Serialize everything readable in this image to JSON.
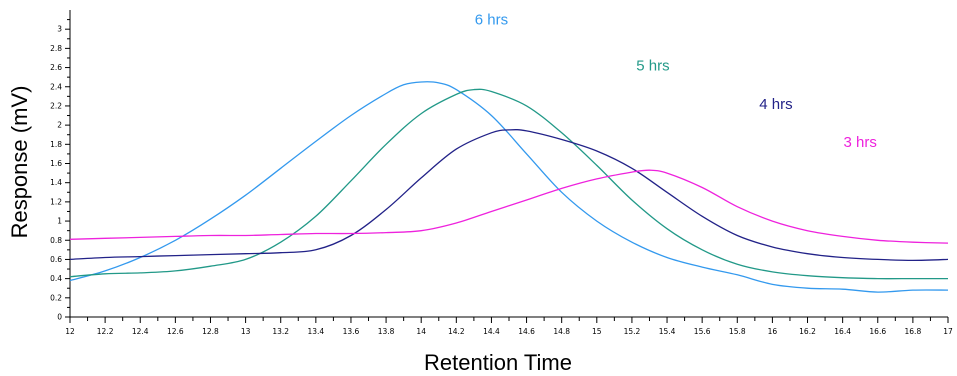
{
  "chart_data": {
    "type": "line",
    "title": "",
    "xlabel": "Retention Time",
    "ylabel": "Response (mV)",
    "xlim": [
      12,
      17
    ],
    "ylim": [
      0,
      3.2
    ],
    "x_ticks": [
      "12",
      "12.2",
      "12.4",
      "12.6",
      "12.8",
      "13",
      "13.2",
      "13.4",
      "13.6",
      "13.8",
      "14",
      "14.2",
      "14.4",
      "14.6",
      "14.8",
      "15",
      "15.2",
      "15.4",
      "15.6",
      "15.8",
      "16",
      "16.2",
      "16.4",
      "16.6",
      "16.8",
      "17"
    ],
    "y_ticks": [
      "0",
      "0.2",
      "0.4",
      "0.6",
      "0.8",
      "1",
      "1.2",
      "1.4",
      "1.6",
      "1.8",
      "2",
      "2.2",
      "2.4",
      "2.6",
      "2.8",
      "3"
    ],
    "grid": false,
    "legend": "inline labels near curves",
    "series": [
      {
        "name": "6 hrs",
        "color": "#3399ee",
        "points": [
          [
            12,
            0.38
          ],
          [
            12.2,
            0.48
          ],
          [
            12.4,
            0.62
          ],
          [
            12.6,
            0.8
          ],
          [
            12.8,
            1.02
          ],
          [
            13,
            1.27
          ],
          [
            13.2,
            1.55
          ],
          [
            13.4,
            1.83
          ],
          [
            13.6,
            2.1
          ],
          [
            13.8,
            2.33
          ],
          [
            13.9,
            2.42
          ],
          [
            14,
            2.45
          ],
          [
            14.1,
            2.44
          ],
          [
            14.2,
            2.37
          ],
          [
            14.4,
            2.1
          ],
          [
            14.6,
            1.7
          ],
          [
            14.8,
            1.3
          ],
          [
            15,
            1.0
          ],
          [
            15.2,
            0.78
          ],
          [
            15.4,
            0.62
          ],
          [
            15.6,
            0.52
          ],
          [
            15.8,
            0.44
          ],
          [
            16,
            0.34
          ],
          [
            16.2,
            0.3
          ],
          [
            16.4,
            0.29
          ],
          [
            16.6,
            0.26
          ],
          [
            16.8,
            0.28
          ],
          [
            17,
            0.28
          ]
        ]
      },
      {
        "name": "5 hrs",
        "color": "#229988",
        "points": [
          [
            12,
            0.42
          ],
          [
            12.2,
            0.45
          ],
          [
            12.4,
            0.46
          ],
          [
            12.6,
            0.48
          ],
          [
            12.8,
            0.53
          ],
          [
            13,
            0.6
          ],
          [
            13.2,
            0.78
          ],
          [
            13.4,
            1.05
          ],
          [
            13.6,
            1.42
          ],
          [
            13.8,
            1.8
          ],
          [
            14,
            2.12
          ],
          [
            14.2,
            2.32
          ],
          [
            14.3,
            2.37
          ],
          [
            14.4,
            2.35
          ],
          [
            14.6,
            2.2
          ],
          [
            14.8,
            1.92
          ],
          [
            15,
            1.58
          ],
          [
            15.2,
            1.22
          ],
          [
            15.4,
            0.92
          ],
          [
            15.6,
            0.7
          ],
          [
            15.8,
            0.55
          ],
          [
            16,
            0.47
          ],
          [
            16.2,
            0.43
          ],
          [
            16.4,
            0.41
          ],
          [
            16.6,
            0.4
          ],
          [
            16.8,
            0.4
          ],
          [
            17,
            0.4
          ]
        ]
      },
      {
        "name": "4 hrs",
        "color": "#222288",
        "points": [
          [
            12,
            0.6
          ],
          [
            12.2,
            0.62
          ],
          [
            12.4,
            0.63
          ],
          [
            12.6,
            0.64
          ],
          [
            12.8,
            0.65
          ],
          [
            13,
            0.66
          ],
          [
            13.2,
            0.67
          ],
          [
            13.4,
            0.7
          ],
          [
            13.6,
            0.85
          ],
          [
            13.8,
            1.12
          ],
          [
            14,
            1.45
          ],
          [
            14.2,
            1.75
          ],
          [
            14.4,
            1.92
          ],
          [
            14.5,
            1.95
          ],
          [
            14.6,
            1.94
          ],
          [
            14.8,
            1.85
          ],
          [
            15,
            1.73
          ],
          [
            15.2,
            1.55
          ],
          [
            15.4,
            1.3
          ],
          [
            15.6,
            1.05
          ],
          [
            15.8,
            0.85
          ],
          [
            16,
            0.73
          ],
          [
            16.2,
            0.66
          ],
          [
            16.4,
            0.62
          ],
          [
            16.6,
            0.6
          ],
          [
            16.8,
            0.59
          ],
          [
            17,
            0.6
          ]
        ]
      },
      {
        "name": "3 hrs",
        "color": "#ee22dd",
        "points": [
          [
            12,
            0.81
          ],
          [
            12.2,
            0.82
          ],
          [
            12.4,
            0.83
          ],
          [
            12.6,
            0.84
          ],
          [
            12.8,
            0.85
          ],
          [
            13,
            0.85
          ],
          [
            13.2,
            0.86
          ],
          [
            13.4,
            0.87
          ],
          [
            13.6,
            0.87
          ],
          [
            13.8,
            0.88
          ],
          [
            14,
            0.9
          ],
          [
            14.2,
            0.98
          ],
          [
            14.4,
            1.1
          ],
          [
            14.6,
            1.22
          ],
          [
            14.8,
            1.34
          ],
          [
            15,
            1.44
          ],
          [
            15.2,
            1.51
          ],
          [
            15.3,
            1.53
          ],
          [
            15.4,
            1.5
          ],
          [
            15.6,
            1.35
          ],
          [
            15.8,
            1.15
          ],
          [
            16,
            1.0
          ],
          [
            16.2,
            0.9
          ],
          [
            16.4,
            0.84
          ],
          [
            16.6,
            0.8
          ],
          [
            16.8,
            0.78
          ],
          [
            17,
            0.77
          ]
        ]
      }
    ],
    "annotations": [
      {
        "text": "6 hrs",
        "x": 14.4,
        "y": 3.05,
        "color": "#3399ee"
      },
      {
        "text": "5 hrs",
        "x": 15.32,
        "y": 2.57,
        "color": "#229988"
      },
      {
        "text": "4 hrs",
        "x": 16.02,
        "y": 2.17,
        "color": "#222288"
      },
      {
        "text": "3 hrs",
        "x": 16.5,
        "y": 1.77,
        "color": "#ee22dd"
      }
    ]
  }
}
